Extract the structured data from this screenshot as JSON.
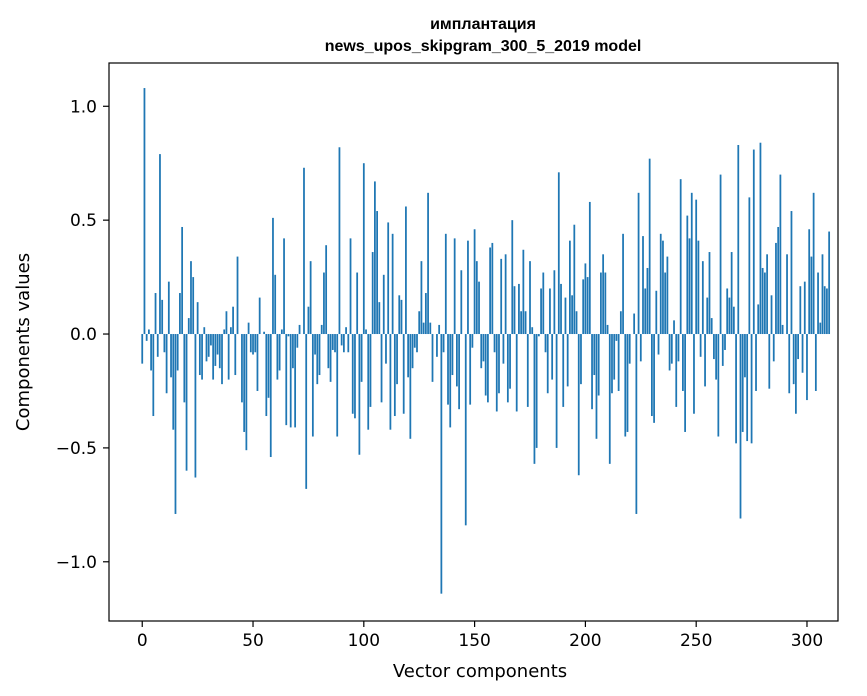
{
  "chart_data": {
    "type": "bar",
    "title": [
      "имплантация",
      "news_upos_skipgram_300_5_2019 model"
    ],
    "xlabel": "Vector components",
    "ylabel": "Components values",
    "xlim": [
      -15,
      314
    ],
    "ylim": [
      -1.26,
      1.19
    ],
    "x_ticks": [
      0,
      50,
      100,
      150,
      200,
      250,
      300
    ],
    "x_tick_labels": [
      "0",
      "50",
      "100",
      "150",
      "200",
      "250",
      "300"
    ],
    "y_ticks": [
      1.0,
      0.5,
      0.0,
      -0.5,
      -1.0
    ],
    "y_tick_labels": [
      "1.0",
      "0.5",
      "0.0",
      "−0.5",
      "−1.0"
    ],
    "bar_color": "#1f77b4",
    "grid": false,
    "legend": "none",
    "values": [
      -0.13,
      1.08,
      -0.03,
      0.02,
      -0.16,
      -0.36,
      0.18,
      -0.1,
      0.79,
      0.15,
      -0.08,
      -0.26,
      0.23,
      -0.19,
      -0.42,
      -0.79,
      -0.16,
      0.18,
      0.47,
      -0.3,
      -0.6,
      0.07,
      0.32,
      0.25,
      -0.63,
      0.14,
      -0.18,
      -0.2,
      0.03,
      -0.12,
      -0.1,
      -0.05,
      -0.2,
      -0.14,
      -0.09,
      -0.15,
      -0.22,
      0.02,
      0.1,
      -0.2,
      0.03,
      0.12,
      -0.18,
      0.34,
      0.0,
      -0.3,
      -0.43,
      -0.51,
      0.05,
      -0.08,
      -0.09,
      -0.08,
      -0.25,
      0.16,
      0.0,
      0.01,
      -0.36,
      -0.28,
      -0.54,
      0.51,
      0.26,
      -0.2,
      -0.16,
      0.02,
      0.42,
      -0.4,
      -0.01,
      -0.41,
      -0.15,
      -0.41,
      -0.06,
      0.04,
      0.0,
      0.73,
      -0.68,
      0.12,
      0.32,
      -0.45,
      -0.09,
      -0.22,
      -0.18,
      0.04,
      0.27,
      0.39,
      -0.15,
      -0.21,
      -0.07,
      -0.08,
      -0.45,
      0.82,
      -0.05,
      -0.08,
      0.03,
      -0.08,
      0.42,
      -0.35,
      -0.37,
      0.27,
      -0.53,
      -0.21,
      0.75,
      0.02,
      -0.42,
      -0.32,
      0.36,
      0.67,
      0.54,
      0.14,
      -0.3,
      0.26,
      -0.13,
      0.49,
      -0.42,
      0.44,
      -0.36,
      -0.22,
      0.17,
      0.15,
      -0.35,
      0.56,
      -0.19,
      -0.46,
      -0.15,
      -0.06,
      -0.08,
      0.1,
      0.32,
      0.05,
      0.18,
      0.62,
      0.05,
      -0.21,
      0.0,
      -0.1,
      0.04,
      -1.14,
      -0.08,
      0.44,
      -0.31,
      -0.41,
      -0.18,
      0.42,
      -0.23,
      -0.33,
      0.28,
      0.0,
      -0.84,
      0.41,
      -0.31,
      -0.06,
      0.46,
      0.32,
      0.23,
      -0.15,
      -0.12,
      -0.27,
      -0.3,
      0.38,
      0.4,
      -0.08,
      -0.34,
      -0.26,
      0.33,
      -0.13,
      0.35,
      -0.3,
      -0.24,
      0.5,
      0.21,
      -0.34,
      0.22,
      0.1,
      0.37,
      0.1,
      -0.32,
      0.32,
      0.03,
      -0.57,
      -0.5,
      -0.01,
      0.2,
      0.27,
      -0.08,
      -0.26,
      0.2,
      -0.2,
      0.28,
      -0.5,
      0.71,
      0.22,
      -0.32,
      0.16,
      -0.23,
      0.41,
      0.17,
      0.48,
      0.1,
      -0.62,
      -0.22,
      0.24,
      0.31,
      0.25,
      0.58,
      -0.33,
      -0.18,
      -0.46,
      -0.27,
      0.27,
      0.35,
      0.27,
      0.04,
      -0.57,
      -0.26,
      -0.2,
      -0.03,
      -0.25,
      0.1,
      0.44,
      -0.45,
      -0.43,
      -0.13,
      0.0,
      0.09,
      -0.79,
      0.62,
      -0.12,
      0.43,
      0.2,
      0.29,
      0.77,
      -0.36,
      -0.39,
      0.19,
      -0.09,
      0.44,
      0.41,
      0.27,
      0.34,
      -0.16,
      -0.13,
      0.06,
      -0.32,
      -0.12,
      0.68,
      -0.25,
      -0.43,
      0.52,
      0.42,
      0.62,
      -0.35,
      0.59,
      0.41,
      -0.1,
      0.32,
      -0.23,
      0.16,
      0.36,
      0.07,
      -0.11,
      -0.2,
      -0.45,
      0.7,
      -0.14,
      -0.07,
      0.2,
      0.16,
      0.36,
      0.12,
      -0.48,
      0.83,
      -0.81,
      -0.43,
      -0.19,
      -0.47,
      0.6,
      -0.48,
      0.81,
      -0.25,
      0.13,
      0.84,
      0.29,
      0.27,
      0.35,
      -0.24,
      0.17,
      -0.12,
      0.4,
      0.47,
      0.7,
      0.04,
      0.0,
      0.35,
      -0.26,
      0.54,
      -0.22,
      -0.35,
      -0.11,
      0.21,
      -0.17,
      0.23,
      -0.29,
      0.46,
      0.34,
      0.62,
      -0.25,
      0.27,
      0.05,
      0.35,
      0.21,
      0.2,
      0.45
    ]
  }
}
